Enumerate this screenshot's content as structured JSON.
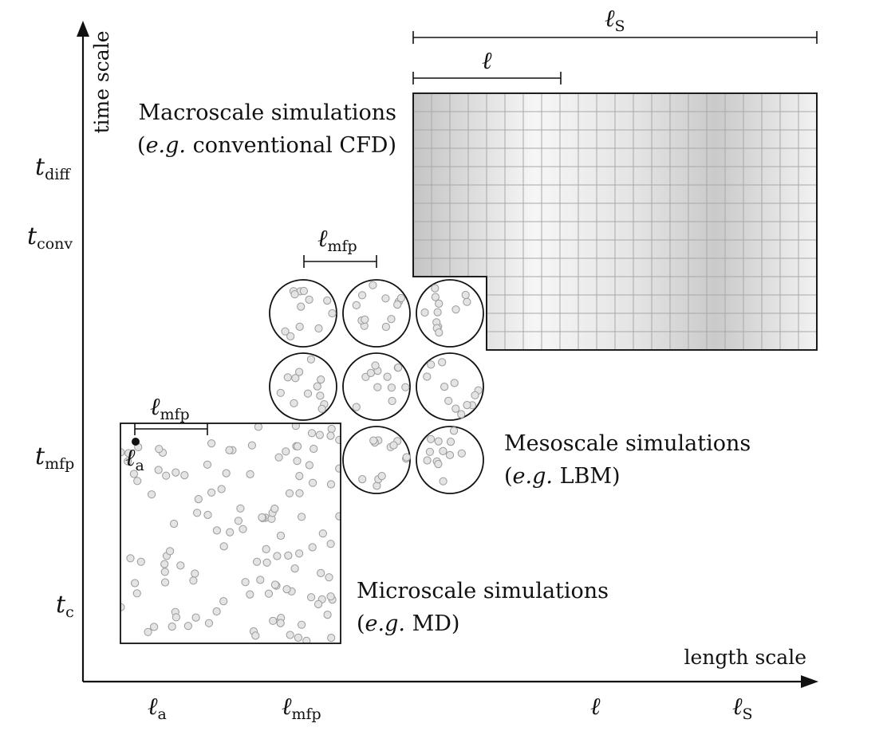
{
  "axes": {
    "y_label": "time scale",
    "x_label": "length scale",
    "y_ticks": [
      {
        "sym": "t",
        "sub": "diff"
      },
      {
        "sym": "t",
        "sub": "conv"
      },
      {
        "sym": "t",
        "sub": "mfp"
      },
      {
        "sym": "t",
        "sub": "c"
      }
    ],
    "x_ticks": [
      {
        "sym": "ℓ",
        "sub": "a"
      },
      {
        "sym": "ℓ",
        "sub": "mfp"
      },
      {
        "sym": "ℓ",
        "sub": ""
      },
      {
        "sym": "ℓ",
        "sub": "S"
      }
    ]
  },
  "macro": {
    "title": "Macroscale simulations",
    "note_prefix": "(",
    "note_eg": "e.g.",
    "note_rest": " conventional CFD)",
    "scale_small": {
      "sym": "ℓ",
      "sub": ""
    },
    "scale_large": {
      "sym": "ℓ",
      "sub": "S"
    }
  },
  "meso": {
    "title": "Mesoscale simulations",
    "note_prefix": "(",
    "note_eg": "e.g.",
    "note_rest": " LBM)",
    "scale": {
      "sym": "ℓ",
      "sub": "mfp"
    }
  },
  "micro": {
    "title": "Microscale simulations",
    "note_prefix": "(",
    "note_eg": "e.g.",
    "note_rest": " MD)",
    "scale": {
      "sym": "ℓ",
      "sub": "mfp"
    },
    "atom": {
      "sym": "ℓ",
      "sub": "a"
    }
  },
  "colors": {
    "line": "#111111",
    "particle_fill": "#e4e4e4",
    "particle_stroke": "#9a9a9a",
    "grid_line": "#a8a8a8",
    "grid_dark": "#c6c6c6",
    "grid_light": "#f6f6f6"
  }
}
